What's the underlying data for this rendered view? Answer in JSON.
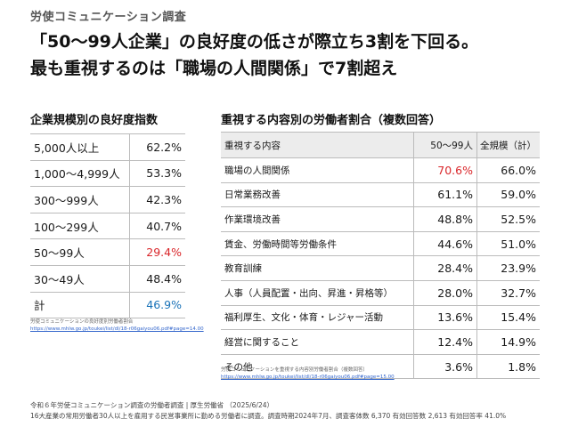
{
  "eyebrow": "労使コミュニケーション調査",
  "headline": {
    "line1": "「50〜99人企業」の良好度の低さが際立ち3割を下回る。",
    "line2": "最も重視するのは「職場の人間関係」で7割超え"
  },
  "left": {
    "title": "企業規模別の良好度指数",
    "rows": [
      {
        "label": "5,000人以上",
        "value": "62.2%"
      },
      {
        "label": "1,000〜4,999人",
        "value": "53.3%"
      },
      {
        "label": "300〜999人",
        "value": "42.3%"
      },
      {
        "label": "100〜299人",
        "value": "40.7%"
      },
      {
        "label": "50〜99人",
        "value": "29.4%"
      },
      {
        "label": "30〜49人",
        "value": "48.4%"
      },
      {
        "label": "計",
        "value": "46.9%"
      }
    ],
    "source_label": "労使コミュニケーションの良好度別労働者割合",
    "source_url": "https://www.mhlw.go.jp/toukei/list/dl/18-r06gaiyou06.pdf#page=14.00"
  },
  "right": {
    "title": "重視する内容別の労働者割合（複数回答）",
    "headers": {
      "item": "重視する内容",
      "col1": "50〜99人",
      "col2": "全規模（計）"
    },
    "rows": [
      {
        "label": "職場の人間関係",
        "v1": "70.6%",
        "v2": "66.0%"
      },
      {
        "label": "日常業務改善",
        "v1": "61.1%",
        "v2": "59.0%"
      },
      {
        "label": "作業環境改善",
        "v1": "48.8%",
        "v2": "52.5%"
      },
      {
        "label": "賃金、労働時間等労働条件",
        "v1": "44.6%",
        "v2": "51.0%"
      },
      {
        "label": "教育訓練",
        "v1": "28.4%",
        "v2": "23.9%"
      },
      {
        "label": "人事（人員配置・出向、昇進・昇格等）",
        "v1": "28.0%",
        "v2": "32.7%"
      },
      {
        "label": "福利厚生、文化・体育・レジャー活動",
        "v1": "13.6%",
        "v2": "15.4%"
      },
      {
        "label": "経営に関すること",
        "v1": "12.4%",
        "v2": "14.9%"
      },
      {
        "label": "その他",
        "v1": "3.6%",
        "v2": "1.8%"
      }
    ],
    "source_label": "労使コミュニケーションを重視する内容別労働者割合（複数回答）",
    "source_url": "https://www.mhlw.go.jp/toukei/list/dl/18-r06gaiyou06.pdf#page=15.00"
  },
  "footer": {
    "line1": "令和６年労使コミュニケーション調査の労働者調査 | 厚生労働省 （2025/6/24）",
    "line2": "16大産業の常用労働者30人以上を雇用する民営事業所に勤める労働者に調査。調査時期2024年7月、調査客体数 6,370 有効回答数 2,613 有効回答率 41.0%"
  },
  "colors": {
    "highlight_red": "#d9262a",
    "highlight_blue": "#1a73b8"
  }
}
